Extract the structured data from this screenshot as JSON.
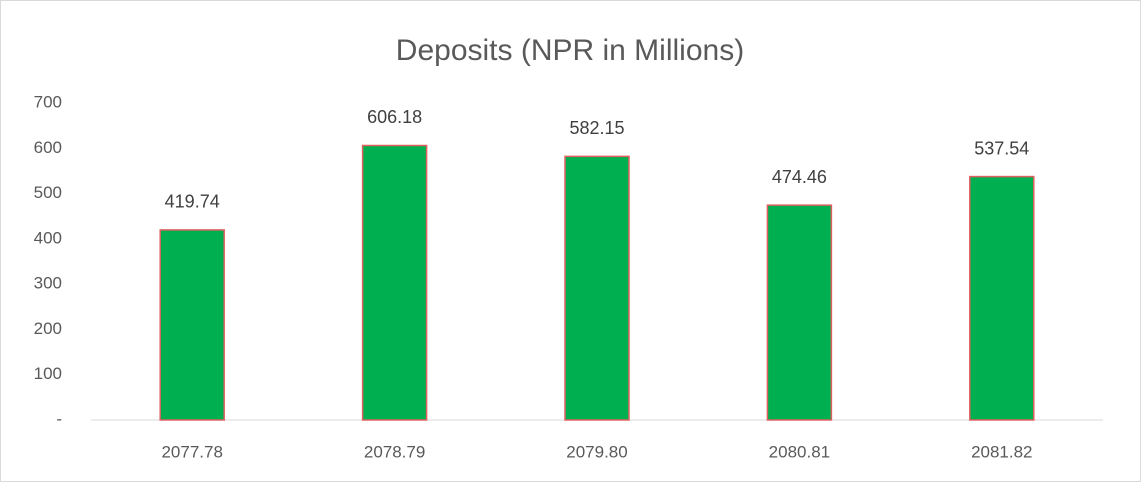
{
  "chart_data": {
    "type": "bar",
    "title": "Deposits (NPR in Millions)",
    "categories": [
      "2077.78",
      "2078.79",
      "2079.80",
      "2080.81",
      "2081.82"
    ],
    "values": [
      419.74,
      606.18,
      582.15,
      474.46,
      537.54
    ],
    "color": "#00b050",
    "edge_color": "#e06060",
    "ylim": [
      0,
      700
    ],
    "yticks": [
      {
        "value": 0,
        "label": "-"
      },
      100,
      200,
      300,
      400,
      500,
      600,
      700
    ],
    "grid": false
  }
}
